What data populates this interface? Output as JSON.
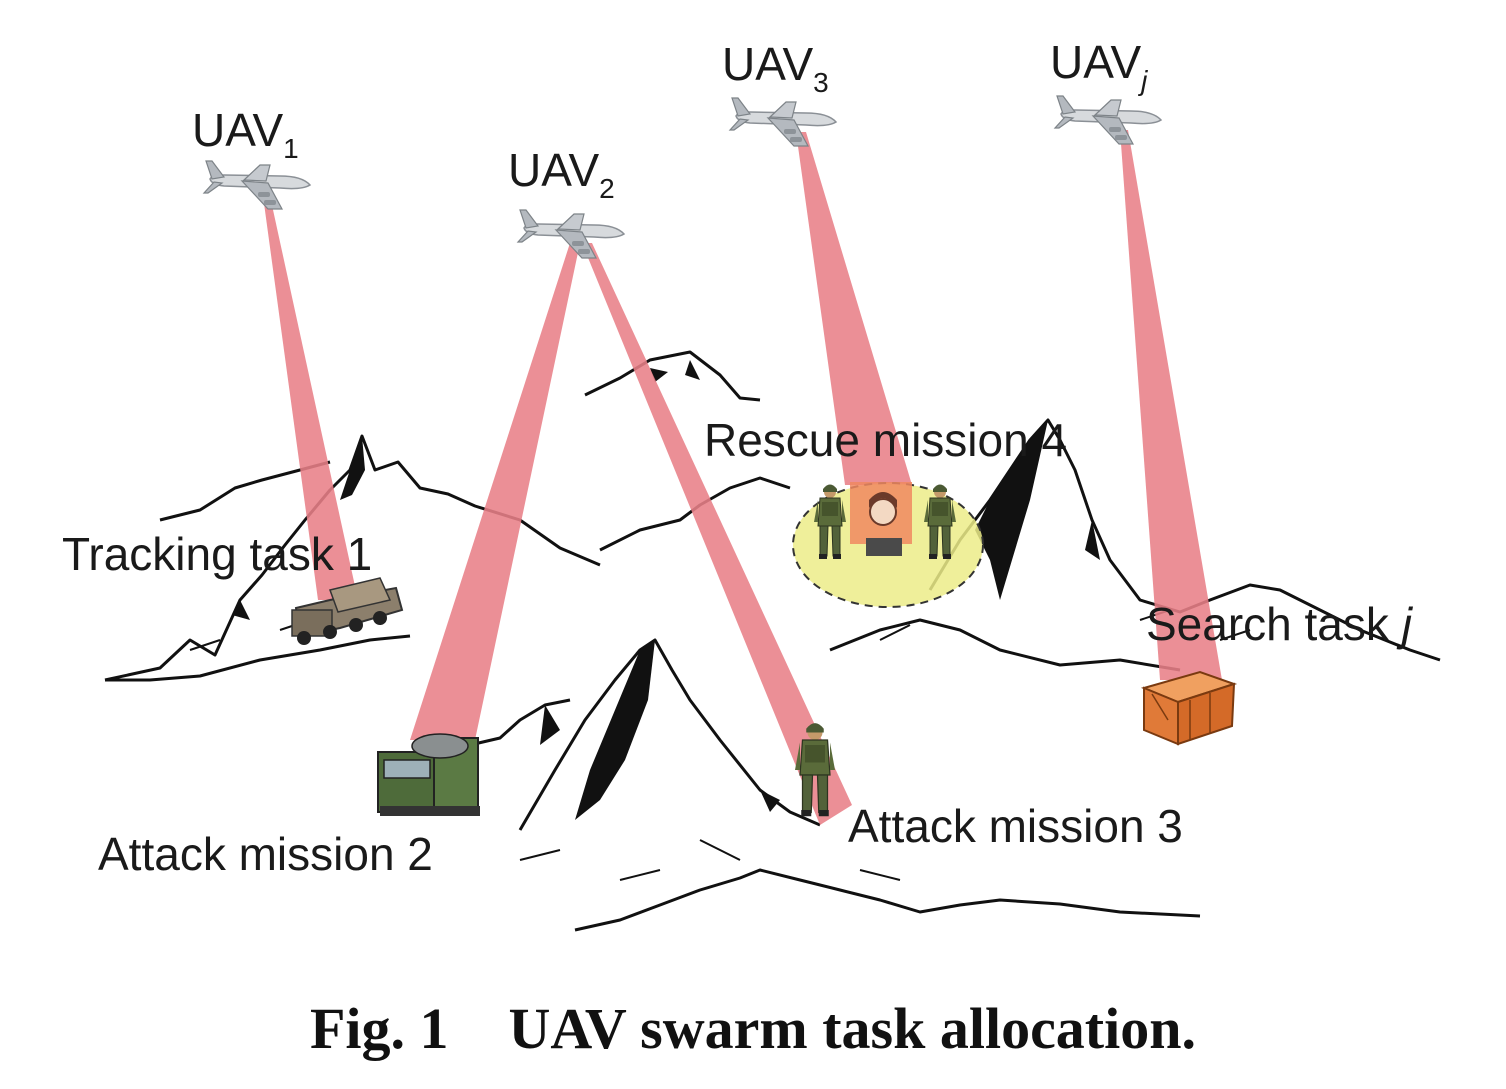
{
  "uavs": [
    {
      "base": "UAV",
      "sub": "1"
    },
    {
      "base": "UAV",
      "sub": "2"
    },
    {
      "base": "UAV",
      "sub": "3"
    },
    {
      "base": "UAV",
      "sub": "j"
    }
  ],
  "tasks": {
    "tracking": "Tracking task 1",
    "attack2": "Attack mission 2",
    "attack3": "Attack mission 3",
    "rescue": "Rescue mission 4",
    "search_prefix": "Search task ",
    "search_j": "j"
  },
  "caption": {
    "number": "Fig. 1",
    "title": "UAV swarm task allocation."
  },
  "colors": {
    "beam": "#e88088",
    "zone": "#ecec88",
    "crate": "#e88040",
    "mountain": "#111111"
  },
  "icons": [
    "airplane-icon",
    "rocket-launcher-truck-icon",
    "missile-truck-icon",
    "soldier-icon",
    "hostage-icon",
    "supply-crate-icon"
  ]
}
